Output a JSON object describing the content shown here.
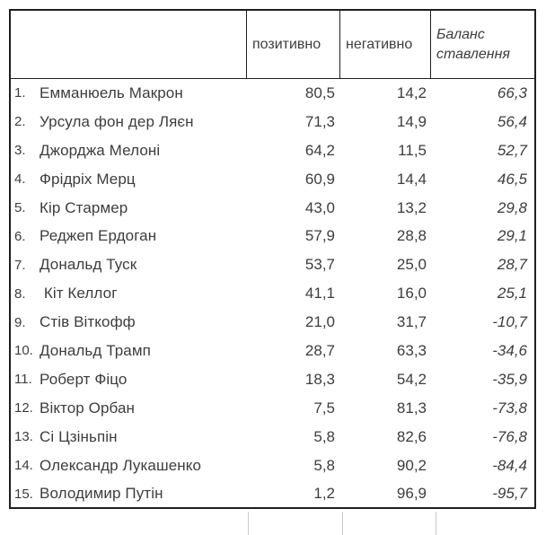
{
  "colors": {
    "text": "#3d3d3d",
    "table_border": "#1f1f1f",
    "bottom_divider_gray": "#c9c9c9",
    "background": "#ffffff"
  },
  "table": {
    "header": {
      "name": "",
      "positive": "позитивно",
      "negative": "негативно",
      "balance": "Баланс ставлення"
    },
    "rows": [
      {
        "rank": "1.",
        "name": "Емманюель Макрон",
        "positive": "80,5",
        "negative": "14,2",
        "balance": "66,3"
      },
      {
        "rank": "2.",
        "name": "Урсула фон дер Ляєн",
        "positive": "71,3",
        "negative": "14,9",
        "balance": "56,4"
      },
      {
        "rank": "3.",
        "name": "Джорджа Мелоні",
        "positive": "64,2",
        "negative": "11,5",
        "balance": "52,7"
      },
      {
        "rank": "4.",
        "name": "Фрідріх Мерц",
        "positive": "60,9",
        "negative": "14,4",
        "balance": "46,5"
      },
      {
        "rank": "5.",
        "name": "Кір Стармер",
        "positive": "43,0",
        "negative": "13,2",
        "balance": "29,8"
      },
      {
        "rank": "6.",
        "name": "Реджеп Ердоган",
        "positive": "57,9",
        "negative": "28,8",
        "balance": "29,1"
      },
      {
        "rank": "7.",
        "name": "Дональд Туск",
        "positive": "53,7",
        "negative": "25,0",
        "balance": "28,7"
      },
      {
        "rank": "8.",
        "name": " Кіт Келлог",
        "positive": "41,1",
        "negative": "16,0",
        "balance": "25,1"
      },
      {
        "rank": "9.",
        "name": "Стів Віткофф",
        "positive": "21,0",
        "negative": "31,7",
        "balance": "-10,7"
      },
      {
        "rank": "10.",
        "name": "Дональд Трамп",
        "positive": "28,7",
        "negative": "63,3",
        "balance": "-34,6"
      },
      {
        "rank": "11.",
        "name": "Роберт Фіцо",
        "positive": "18,3",
        "negative": "54,2",
        "balance": "-35,9"
      },
      {
        "rank": "12.",
        "name": "Віктор Орбан",
        "positive": "7,5",
        "negative": "81,3",
        "balance": "-73,8"
      },
      {
        "rank": "13.",
        "name": "Сі Цзіньпін",
        "positive": "5,8",
        "negative": "82,6",
        "balance": "-76,8"
      },
      {
        "rank": "14.",
        "name": "Олександр Лукашенко",
        "positive": "5,8",
        "negative": "90,2",
        "balance": "-84,4"
      },
      {
        "rank": "15.",
        "name": "Володимир Путін",
        "positive": "1,2",
        "negative": "96,9",
        "balance": "-95,7"
      }
    ]
  },
  "chart_data": {
    "type": "table",
    "columns": [
      "",
      "позитивно",
      "негативно",
      "Баланс ставлення"
    ],
    "rows": [
      [
        "1.",
        "Емманюель Макрон",
        80.5,
        14.2,
        66.3
      ],
      [
        "2.",
        "Урсула фон дер Ляєн",
        71.3,
        14.9,
        56.4
      ],
      [
        "3.",
        "Джорджа Мелоні",
        64.2,
        11.5,
        52.7
      ],
      [
        "4.",
        "Фрідріх Мерц",
        60.9,
        14.4,
        46.5
      ],
      [
        "5.",
        "Кір Стармер",
        43.0,
        13.2,
        29.8
      ],
      [
        "6.",
        "Реджеп Ердоган",
        57.9,
        28.8,
        29.1
      ],
      [
        "7.",
        "Дональд Туск",
        53.7,
        25.0,
        28.7
      ],
      [
        "8.",
        "Кіт Келлог",
        41.1,
        16.0,
        25.1
      ],
      [
        "9.",
        "Стів Віткофф",
        21.0,
        31.7,
        -10.7
      ],
      [
        "10.",
        "Дональд Трамп",
        28.7,
        63.3,
        -34.6
      ],
      [
        "11.",
        "Роберт Фіцо",
        18.3,
        54.2,
        -35.9
      ],
      [
        "12.",
        "Віктор Орбан",
        7.5,
        81.3,
        -73.8
      ],
      [
        "13.",
        "Сі Цзіньпін",
        5.8,
        82.6,
        -76.8
      ],
      [
        "14.",
        "Олександр Лукашенко",
        5.8,
        90.2,
        -84.4
      ],
      [
        "15.",
        "Володимир Путін",
        1.2,
        96.9,
        -95.7
      ]
    ],
    "layout": {
      "decimal_separator": ",",
      "value_alignment": "right",
      "balance_column_style": "italic",
      "gridlines": "header-only",
      "partial_next_table_dividers_bottom": true
    }
  }
}
